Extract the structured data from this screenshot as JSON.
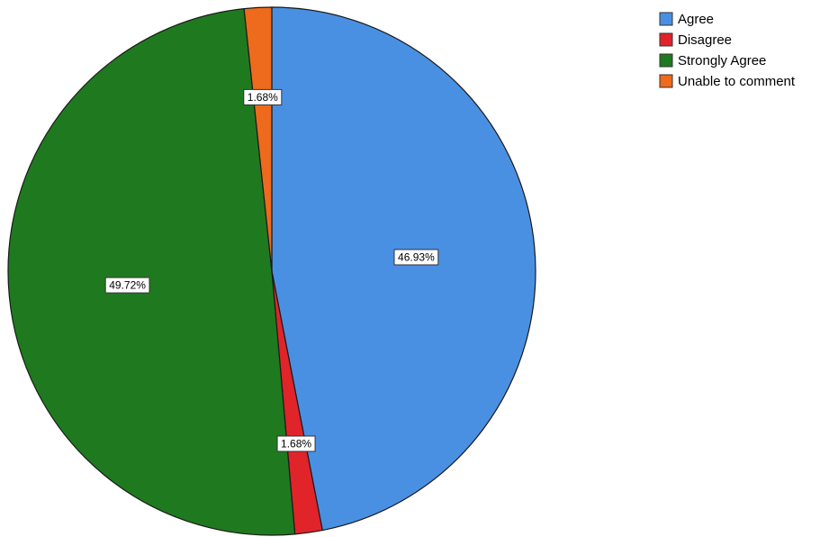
{
  "chart_data": {
    "type": "pie",
    "title": "",
    "start_angle_deg": 0,
    "direction": "clockwise",
    "legend_position": "top-right",
    "slices": [
      {
        "label": "Agree",
        "value": 46.93,
        "display": "46.93%",
        "color": "#4a90e2"
      },
      {
        "label": "Disagree",
        "value": 1.68,
        "display": "1.68%",
        "color": "#e0242a"
      },
      {
        "label": "Strongly Agree",
        "value": 49.72,
        "display": "49.72%",
        "color": "#1f7a1f"
      },
      {
        "label": "Unable to comment",
        "value": 1.68,
        "display": "1.68%",
        "color": "#ee6a1c"
      }
    ]
  }
}
